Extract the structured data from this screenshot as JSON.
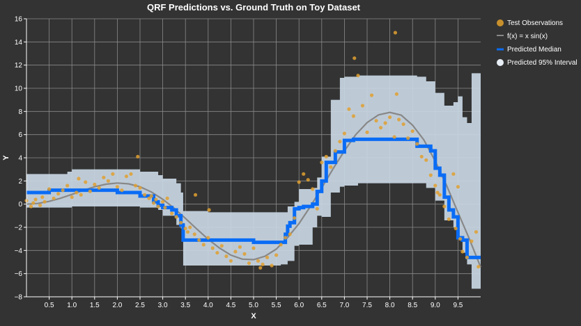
{
  "chart_data": {
    "type": "line",
    "title": "QRF Predictions vs. Ground Truth on Toy Dataset",
    "xlabel": "X",
    "ylabel": "Y",
    "xlim": [
      0,
      10
    ],
    "ylim": [
      -8,
      16
    ],
    "x_ticks": [
      0.5,
      1.0,
      1.5,
      2.0,
      2.5,
      3.0,
      3.5,
      4.0,
      4.5,
      5.0,
      5.5,
      6.0,
      6.5,
      7.0,
      7.5,
      8.0,
      8.5,
      9.0,
      9.5
    ],
    "x_tick_labels": [
      "0.5",
      "1.0",
      "1.5",
      "2.0",
      "2.5",
      "3.0",
      "3.5",
      "4.0",
      "4.5",
      "5.0",
      "5.5",
      "6.0",
      "6.5",
      "7.0",
      "7.5",
      "8.0",
      "8.5",
      "9.0",
      "9.5"
    ],
    "y_ticks": [
      -8,
      -6,
      -4,
      -2,
      0,
      2,
      4,
      6,
      8,
      10,
      12,
      14,
      16
    ],
    "y_tick_labels": [
      "−8",
      "−6",
      "−4",
      "−2",
      "0",
      "2",
      "4",
      "6",
      "8",
      "10",
      "12",
      "14",
      "16"
    ],
    "grid": true,
    "legend_position": "right",
    "colors": {
      "background": "#333333",
      "grid": "#8a8a8a",
      "observations": "#e0a030",
      "truth": "#888888",
      "median": "#0a6cf5",
      "interval": "#c9d7e4"
    },
    "legend": [
      {
        "label": "Test Observations",
        "type": "point"
      },
      {
        "label": "f(x) = x sin(x)",
        "type": "line"
      },
      {
        "label": "Predicted Median",
        "type": "median"
      },
      {
        "label": "Predicted 95% Interval",
        "type": "interval"
      }
    ],
    "observations": {
      "x": [
        0.0,
        0.1,
        0.15,
        0.2,
        0.3,
        0.35,
        0.4,
        0.5,
        0.6,
        0.7,
        0.8,
        0.9,
        1.0,
        1.1,
        1.15,
        1.2,
        1.3,
        1.4,
        1.5,
        1.6,
        1.7,
        1.8,
        1.9,
        2.0,
        2.1,
        2.2,
        2.3,
        2.4,
        2.45,
        2.5,
        2.6,
        2.7,
        2.75,
        2.8,
        2.85,
        2.9,
        3.0,
        3.05,
        3.1,
        3.2,
        3.3,
        3.4,
        3.5,
        3.55,
        3.6,
        3.7,
        3.72,
        3.8,
        3.9,
        4.0,
        4.02,
        4.1,
        4.2,
        4.3,
        4.4,
        4.5,
        4.6,
        4.7,
        4.8,
        4.9,
        5.0,
        5.1,
        5.15,
        5.2,
        5.3,
        5.4,
        5.5,
        5.6,
        5.7,
        5.8,
        5.9,
        6.0,
        6.1,
        6.2,
        6.3,
        6.4,
        6.5,
        6.6,
        6.7,
        6.8,
        6.9,
        7.0,
        7.1,
        7.2,
        7.22,
        7.3,
        7.4,
        7.5,
        7.6,
        7.7,
        7.8,
        7.9,
        8.0,
        8.1,
        8.12,
        8.15,
        8.2,
        8.3,
        8.4,
        8.5,
        8.6,
        8.7,
        8.8,
        8.9,
        9.0,
        9.05,
        9.1,
        9.2,
        9.3,
        9.4,
        9.45,
        9.5,
        9.55,
        9.6,
        9.7,
        9.8,
        9.9,
        9.95
      ],
      "y": [
        0.3,
        -0.2,
        0.1,
        0.4,
        -0.1,
        0.6,
        0.2,
        1.3,
        0.5,
        0.9,
        1.2,
        1.6,
        0.6,
        1.0,
        2.2,
        0.8,
        1.9,
        1.1,
        1.7,
        1.4,
        2.3,
        2.0,
        2.6,
        1.5,
        1.2,
        2.4,
        2.6,
        1.6,
        4.1,
        1.4,
        0.8,
        0.5,
        0.7,
        0.1,
        0.4,
        -0.2,
        0.2,
        -0.3,
        0.5,
        -0.8,
        -1.1,
        -1.6,
        -2.1,
        -2.4,
        -2.0,
        -2.6,
        0.8,
        -3.1,
        -3.5,
        -2.9,
        -0.5,
        -3.8,
        -4.2,
        -3.6,
        -4.5,
        -4.9,
        -4.1,
        -3.7,
        -4.3,
        -5.1,
        -3.8,
        -4.9,
        -5.5,
        -5.2,
        -4.6,
        -5.3,
        -4.4,
        -3.5,
        -2.9,
        -2.6,
        -1.2,
        1.9,
        2.6,
        2.1,
        1.3,
        -0.4,
        3.6,
        4.1,
        3.2,
        4.6,
        5.4,
        6.1,
        8.2,
        7.6,
        12.6,
        11.1,
        8.5,
        6.2,
        9.4,
        7.2,
        6.6,
        7.0,
        7.5,
        5.8,
        14.8,
        9.5,
        7.3,
        6.9,
        5.7,
        6.3,
        5.2,
        4.1,
        3.8,
        2.5,
        1.6,
        1.0,
        0.8,
        -0.2,
        -1.3,
        2.6,
        -2.1,
        1.5,
        -3.0,
        -4.1,
        -4.6,
        -3.2,
        -2.4,
        -5.4
      ]
    },
    "truth": {
      "name": "f(x) = x sin(x)",
      "x": [
        0.0,
        0.25,
        0.5,
        0.75,
        1.0,
        1.25,
        1.5,
        1.75,
        2.0,
        2.25,
        2.5,
        2.75,
        3.0,
        3.25,
        3.5,
        3.75,
        4.0,
        4.25,
        4.5,
        4.75,
        5.0,
        5.25,
        5.5,
        5.75,
        6.0,
        6.25,
        6.5,
        6.75,
        7.0,
        7.25,
        7.5,
        7.75,
        8.0,
        8.25,
        8.5,
        8.75,
        9.0,
        9.25,
        9.5,
        9.75,
        10.0
      ],
      "y": [
        0.0,
        0.06,
        0.24,
        0.51,
        0.84,
        1.19,
        1.5,
        1.72,
        1.82,
        1.75,
        1.5,
        1.05,
        0.42,
        -0.35,
        -1.23,
        -2.15,
        -3.03,
        -3.79,
        -4.4,
        -4.75,
        -4.79,
        -4.5,
        -3.88,
        -2.88,
        -1.68,
        -0.21,
        1.4,
        3.05,
        4.6,
        6.0,
        7.04,
        7.7,
        7.92,
        7.68,
        6.82,
        5.54,
        3.71,
        1.6,
        -0.71,
        -3.0,
        -5.44
      ]
    },
    "median": {
      "x": [
        0.0,
        0.5,
        1.0,
        1.5,
        2.0,
        2.5,
        2.8,
        2.9,
        3.0,
        3.1,
        3.2,
        3.3,
        3.4,
        3.45,
        3.5,
        3.9,
        5.0,
        5.7,
        5.75,
        5.8,
        5.9,
        6.0,
        6.1,
        6.3,
        6.4,
        6.5,
        6.6,
        6.8,
        7.0,
        7.2,
        7.8,
        8.0,
        8.3,
        8.6,
        8.9,
        9.0,
        9.1,
        9.2,
        9.3,
        9.4,
        9.5,
        9.6,
        9.7,
        9.8,
        10.0
      ],
      "y": [
        1.0,
        1.0,
        1.2,
        1.2,
        1.2,
        1.0,
        0.7,
        0.2,
        -0.1,
        -0.3,
        -0.3,
        -0.5,
        -1.0,
        -1.8,
        -3.1,
        -3.1,
        -3.1,
        -3.3,
        -2.6,
        -1.9,
        -1.6,
        -0.4,
        -0.3,
        -0.2,
        0.0,
        1.1,
        2.0,
        3.6,
        4.5,
        5.5,
        5.6,
        5.6,
        5.6,
        5.6,
        5.0,
        4.6,
        3.1,
        2.5,
        0.6,
        -0.5,
        -1.1,
        -2.9,
        -3.1,
        -4.6,
        -4.6
      ]
    },
    "interval": {
      "x": [
        0.0,
        0.9,
        1.0,
        2.4,
        2.5,
        2.9,
        3.0,
        3.3,
        3.4,
        3.45,
        4.0,
        5.0,
        5.6,
        5.75,
        5.9,
        6.0,
        6.3,
        6.4,
        6.5,
        6.7,
        6.9,
        7.0,
        7.3,
        8.0,
        8.6,
        8.8,
        9.0,
        9.2,
        9.4,
        9.5,
        9.6,
        9.7,
        9.8,
        10.0
      ],
      "upper": [
        2.6,
        2.8,
        3.0,
        3.0,
        2.8,
        2.5,
        2.2,
        1.8,
        1.0,
        -0.6,
        -0.7,
        -0.7,
        -0.7,
        -0.2,
        0.2,
        1.3,
        1.4,
        2.3,
        4.1,
        9.0,
        10.9,
        11.0,
        11.1,
        11.1,
        11.0,
        10.6,
        9.6,
        8.5,
        8.8,
        9.3,
        7.5,
        7.0,
        11.3,
        5.5
      ],
      "lower": [
        -0.3,
        -0.3,
        -0.2,
        -0.2,
        -0.3,
        -0.5,
        -1.0,
        -1.8,
        -2.1,
        -5.3,
        -5.3,
        -5.3,
        -5.2,
        -4.9,
        -3.6,
        -3.5,
        -2.0,
        -1.0,
        -1.1,
        1.0,
        1.5,
        1.6,
        1.8,
        1.8,
        1.8,
        1.4,
        0.3,
        -1.4,
        -2.0,
        -3.0,
        -4.2,
        -5.2,
        -7.3,
        -7.3
      ]
    }
  }
}
